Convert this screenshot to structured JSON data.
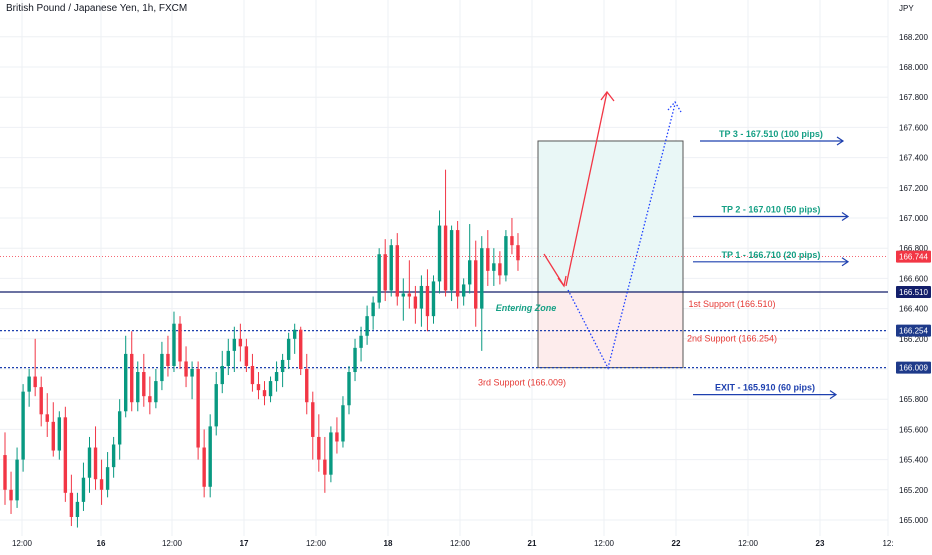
{
  "chart_title": "British Pound / Japanese Yen, 1h, FXCM",
  "currency_label": "JPY",
  "colors": {
    "up": "#26a69a",
    "down": "#ef5350",
    "up_candle": "#089981",
    "down_candle": "#f23645",
    "support_blue": "#1e40af",
    "navy": "#131f6b",
    "teal_text": "#16a085",
    "red_text": "#e53935",
    "price_badge": "#f23645",
    "level_badge": "#1e3a8a",
    "grid": "#eef0f4",
    "axis_text": "#131722",
    "long_zone": "#e9f7f6",
    "short_zone": "#fdecec",
    "arrow_red": "#f23645",
    "arrow_blue": "#1e40ff"
  },
  "chart_data": {
    "type": "candlestick",
    "title": "British Pound / Japanese Yen, 1h, FXCM",
    "y_axis_label": "JPY",
    "ylim": [
      164.94,
      168.4
    ],
    "y_ticks": [
      "165.000",
      "165.200",
      "165.400",
      "165.600",
      "165.800",
      "166.000",
      "166.200",
      "166.400",
      "166.600",
      "166.800",
      "167.000",
      "167.200",
      "167.400",
      "167.600",
      "167.800",
      "168.000",
      "168.200"
    ],
    "x_ticks": [
      "12:00",
      "16",
      "12:00",
      "17",
      "12:00",
      "18",
      "12:00",
      "21",
      "12:00",
      "22",
      "12:00",
      "23",
      "12:"
    ],
    "current_price": "166.744",
    "levels": [
      {
        "name": "1st Support",
        "value": 166.51,
        "badge": "166.510",
        "label": "1st Support (166.510)"
      },
      {
        "name": "2nd Support",
        "value": 166.254,
        "badge": "166.254",
        "label": "2nd Support (166.254)"
      },
      {
        "name": "3rd Support",
        "value": 166.009,
        "badge": "166.009",
        "label": "3rd Support (166.009)"
      }
    ],
    "targets": [
      {
        "label": "TP 3 - 167.510 (100 pips)",
        "value": 167.51
      },
      {
        "label": "TP 2 - 167.010 (50 pips)",
        "value": 167.01
      },
      {
        "label": "TP 1 - 166.710 (20 pips)",
        "value": 166.71
      },
      {
        "label": "EXIT - 165.910 (60 pips)",
        "value": 165.91
      }
    ],
    "entering_zone_label": "Entering Zone",
    "long_position": {
      "entry": 166.51,
      "target": 167.51,
      "stop": 166.009
    },
    "candles": [
      {
        "o": 165.43,
        "h": 165.58,
        "l": 165.1,
        "c": 165.2
      },
      {
        "o": 165.2,
        "h": 165.32,
        "l": 165.04,
        "c": 165.13
      },
      {
        "o": 165.13,
        "h": 165.48,
        "l": 165.08,
        "c": 165.4
      },
      {
        "o": 165.4,
        "h": 165.9,
        "l": 165.32,
        "c": 165.85
      },
      {
        "o": 165.85,
        "h": 166.0,
        "l": 165.75,
        "c": 165.95
      },
      {
        "o": 165.95,
        "h": 166.2,
        "l": 165.82,
        "c": 165.88
      },
      {
        "o": 165.88,
        "h": 165.95,
        "l": 165.62,
        "c": 165.7
      },
      {
        "o": 165.7,
        "h": 165.84,
        "l": 165.55,
        "c": 165.65
      },
      {
        "o": 165.65,
        "h": 165.78,
        "l": 165.42,
        "c": 165.46
      },
      {
        "o": 165.46,
        "h": 165.72,
        "l": 165.4,
        "c": 165.68
      },
      {
        "o": 165.68,
        "h": 165.75,
        "l": 165.12,
        "c": 165.18
      },
      {
        "o": 165.18,
        "h": 165.3,
        "l": 164.96,
        "c": 165.02
      },
      {
        "o": 165.02,
        "h": 165.18,
        "l": 164.95,
        "c": 165.12
      },
      {
        "o": 165.12,
        "h": 165.38,
        "l": 165.06,
        "c": 165.28
      },
      {
        "o": 165.28,
        "h": 165.55,
        "l": 165.18,
        "c": 165.48
      },
      {
        "o": 165.48,
        "h": 165.62,
        "l": 165.2,
        "c": 165.27
      },
      {
        "o": 165.27,
        "h": 165.4,
        "l": 165.1,
        "c": 165.2
      },
      {
        "o": 165.2,
        "h": 165.45,
        "l": 165.15,
        "c": 165.35
      },
      {
        "o": 165.35,
        "h": 165.55,
        "l": 165.28,
        "c": 165.5
      },
      {
        "o": 165.5,
        "h": 165.8,
        "l": 165.4,
        "c": 165.72
      },
      {
        "o": 165.72,
        "h": 166.22,
        "l": 165.68,
        "c": 166.1
      },
      {
        "o": 166.1,
        "h": 166.25,
        "l": 165.72,
        "c": 165.78
      },
      {
        "o": 165.78,
        "h": 166.05,
        "l": 165.72,
        "c": 165.98
      },
      {
        "o": 165.98,
        "h": 166.1,
        "l": 165.75,
        "c": 165.82
      },
      {
        "o": 165.82,
        "h": 165.95,
        "l": 165.7,
        "c": 165.78
      },
      {
        "o": 165.78,
        "h": 166.0,
        "l": 165.74,
        "c": 165.92
      },
      {
        "o": 165.92,
        "h": 166.18,
        "l": 165.86,
        "c": 166.1
      },
      {
        "o": 166.1,
        "h": 166.22,
        "l": 165.95,
        "c": 166.02
      },
      {
        "o": 166.02,
        "h": 166.38,
        "l": 165.98,
        "c": 166.3
      },
      {
        "o": 166.3,
        "h": 166.35,
        "l": 166.0,
        "c": 166.05
      },
      {
        "o": 166.05,
        "h": 166.15,
        "l": 165.88,
        "c": 165.95
      },
      {
        "o": 165.95,
        "h": 166.05,
        "l": 165.8,
        "c": 166.0
      },
      {
        "o": 166.0,
        "h": 166.05,
        "l": 165.4,
        "c": 165.48
      },
      {
        "o": 165.48,
        "h": 165.6,
        "l": 165.15,
        "c": 165.22
      },
      {
        "o": 165.22,
        "h": 165.7,
        "l": 165.15,
        "c": 165.62
      },
      {
        "o": 165.62,
        "h": 165.98,
        "l": 165.56,
        "c": 165.9
      },
      {
        "o": 165.9,
        "h": 166.12,
        "l": 165.84,
        "c": 166.02
      },
      {
        "o": 166.02,
        "h": 166.2,
        "l": 165.96,
        "c": 166.12
      },
      {
        "o": 166.12,
        "h": 166.28,
        "l": 165.98,
        "c": 166.2
      },
      {
        "o": 166.2,
        "h": 166.3,
        "l": 166.05,
        "c": 166.15
      },
      {
        "o": 166.15,
        "h": 166.2,
        "l": 165.98,
        "c": 166.02
      },
      {
        "o": 166.02,
        "h": 166.1,
        "l": 165.85,
        "c": 165.9
      },
      {
        "o": 165.9,
        "h": 165.98,
        "l": 165.8,
        "c": 165.86
      },
      {
        "o": 165.86,
        "h": 165.92,
        "l": 165.76,
        "c": 165.82
      },
      {
        "o": 165.82,
        "h": 165.95,
        "l": 165.78,
        "c": 165.92
      },
      {
        "o": 165.92,
        "h": 166.05,
        "l": 165.85,
        "c": 165.98
      },
      {
        "o": 165.98,
        "h": 166.1,
        "l": 165.88,
        "c": 166.06
      },
      {
        "o": 166.06,
        "h": 166.24,
        "l": 166.0,
        "c": 166.2
      },
      {
        "o": 166.2,
        "h": 166.3,
        "l": 166.1,
        "c": 166.26
      },
      {
        "o": 166.26,
        "h": 166.28,
        "l": 165.96,
        "c": 166.0
      },
      {
        "o": 166.0,
        "h": 166.1,
        "l": 165.7,
        "c": 165.78
      },
      {
        "o": 165.78,
        "h": 165.85,
        "l": 165.4,
        "c": 165.55
      },
      {
        "o": 165.55,
        "h": 165.7,
        "l": 165.32,
        "c": 165.4
      },
      {
        "o": 165.4,
        "h": 165.55,
        "l": 165.18,
        "c": 165.3
      },
      {
        "o": 165.3,
        "h": 165.62,
        "l": 165.25,
        "c": 165.58
      },
      {
        "o": 165.58,
        "h": 165.68,
        "l": 165.44,
        "c": 165.52
      },
      {
        "o": 165.52,
        "h": 165.82,
        "l": 165.48,
        "c": 165.76
      },
      {
        "o": 165.76,
        "h": 166.02,
        "l": 165.7,
        "c": 165.98
      },
      {
        "o": 165.98,
        "h": 166.2,
        "l": 165.92,
        "c": 166.14
      },
      {
        "o": 166.14,
        "h": 166.28,
        "l": 166.05,
        "c": 166.22
      },
      {
        "o": 166.22,
        "h": 166.42,
        "l": 166.16,
        "c": 166.35
      },
      {
        "o": 166.35,
        "h": 166.48,
        "l": 166.26,
        "c": 166.44
      },
      {
        "o": 166.44,
        "h": 166.8,
        "l": 166.4,
        "c": 166.76
      },
      {
        "o": 166.76,
        "h": 166.86,
        "l": 166.45,
        "c": 166.52
      },
      {
        "o": 166.52,
        "h": 166.86,
        "l": 166.48,
        "c": 166.82
      },
      {
        "o": 166.82,
        "h": 166.9,
        "l": 166.42,
        "c": 166.48
      },
      {
        "o": 166.48,
        "h": 166.6,
        "l": 166.32,
        "c": 166.5
      },
      {
        "o": 166.5,
        "h": 166.72,
        "l": 166.4,
        "c": 166.48
      },
      {
        "o": 166.48,
        "h": 166.55,
        "l": 166.3,
        "c": 166.4
      },
      {
        "o": 166.4,
        "h": 166.62,
        "l": 166.28,
        "c": 166.55
      },
      {
        "o": 166.55,
        "h": 166.66,
        "l": 166.25,
        "c": 166.35
      },
      {
        "o": 166.35,
        "h": 166.62,
        "l": 166.3,
        "c": 166.58
      },
      {
        "o": 166.58,
        "h": 167.05,
        "l": 166.5,
        "c": 166.95
      },
      {
        "o": 166.95,
        "h": 167.32,
        "l": 166.48,
        "c": 166.52
      },
      {
        "o": 166.52,
        "h": 166.95,
        "l": 166.45,
        "c": 166.92
      },
      {
        "o": 166.92,
        "h": 166.98,
        "l": 166.4,
        "c": 166.48
      },
      {
        "o": 166.48,
        "h": 166.6,
        "l": 166.42,
        "c": 166.56
      },
      {
        "o": 166.56,
        "h": 166.96,
        "l": 166.5,
        "c": 166.72
      },
      {
        "o": 166.72,
        "h": 166.85,
        "l": 166.28,
        "c": 166.4
      },
      {
        "o": 166.4,
        "h": 166.88,
        "l": 166.12,
        "c": 166.8
      },
      {
        "o": 166.8,
        "h": 166.92,
        "l": 166.55,
        "c": 166.65
      },
      {
        "o": 166.65,
        "h": 166.8,
        "l": 166.55,
        "c": 166.7
      },
      {
        "o": 166.7,
        "h": 166.78,
        "l": 166.56,
        "c": 166.62
      },
      {
        "o": 166.62,
        "h": 166.92,
        "l": 166.58,
        "c": 166.88
      },
      {
        "o": 166.88,
        "h": 167.0,
        "l": 166.76,
        "c": 166.82
      },
      {
        "o": 166.82,
        "h": 166.9,
        "l": 166.65,
        "c": 166.72
      }
    ]
  }
}
